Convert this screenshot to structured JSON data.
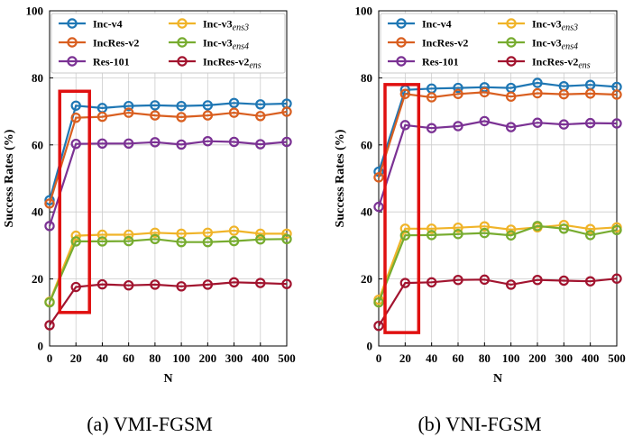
{
  "colors": {
    "Inc-v4": "#1f77b4",
    "IncRes-v2": "#d95f20",
    "Res-101": "#7b3294",
    "Inc-v3ens3": "#f0b429",
    "Inc-v3ens4": "#77ac30",
    "IncRes-v2ens": "#a2142f",
    "highlight": "#e01010",
    "grid": "#cccccc"
  },
  "chart_data": [
    {
      "type": "line",
      "caption": "(a) VMI-FGSM",
      "xlabel": "N",
      "ylabel": "Success Rates (%)",
      "categories": [
        "0",
        "20",
        "40",
        "60",
        "80",
        "100",
        "200",
        "300",
        "400",
        "500"
      ],
      "ylim": [
        0,
        100
      ],
      "yticks": [
        "0",
        "20",
        "40",
        "60",
        "80",
        "100"
      ],
      "grid": true,
      "legend_position": "top",
      "highlight_range": {
        "x_from": "20",
        "y_from": 10,
        "y_to": 76
      },
      "series": [
        {
          "name": "Inc-v4",
          "label": "Inc-v4",
          "sub": "",
          "values": [
            43.5,
            71.7,
            71.0,
            71.6,
            71.8,
            71.6,
            71.8,
            72.5,
            72.1,
            72.3
          ]
        },
        {
          "name": "IncRes-v2",
          "label": "IncRes-v2",
          "sub": "",
          "values": [
            42.5,
            68.1,
            68.4,
            69.6,
            68.8,
            68.3,
            68.8,
            69.6,
            68.6,
            69.9
          ]
        },
        {
          "name": "Res-101",
          "label": "Res-101",
          "sub": "",
          "values": [
            35.8,
            60.3,
            60.4,
            60.4,
            60.8,
            60.1,
            61.1,
            60.9,
            60.2,
            60.9
          ]
        },
        {
          "name": "Inc-v3ens3",
          "label": "Inc-v3",
          "sub": "ens3",
          "values": [
            13.2,
            32.9,
            33.2,
            33.2,
            33.8,
            33.5,
            33.8,
            34.4,
            33.5,
            33.5
          ]
        },
        {
          "name": "Inc-v3ens4",
          "label": "Inc-v3",
          "sub": "ens4",
          "values": [
            13.0,
            31.2,
            31.2,
            31.3,
            31.9,
            31.0,
            31.0,
            31.3,
            31.8,
            31.9
          ]
        },
        {
          "name": "IncRes-v2ens",
          "label": "IncRes-v2",
          "sub": "ens",
          "values": [
            6.2,
            17.6,
            18.4,
            18.1,
            18.3,
            17.8,
            18.3,
            19.0,
            18.8,
            18.5
          ]
        }
      ]
    },
    {
      "type": "line",
      "caption": "(b) VNI-FGSM",
      "xlabel": "N",
      "ylabel": "Success Rates (%)",
      "categories": [
        "0",
        "20",
        "40",
        "60",
        "80",
        "100",
        "200",
        "300",
        "400",
        "500"
      ],
      "ylim": [
        0,
        100
      ],
      "yticks": [
        "0",
        "20",
        "40",
        "60",
        "80",
        "100"
      ],
      "grid": true,
      "legend_position": "top",
      "highlight_range": {
        "x_from": "0",
        "y_from": 4,
        "y_to": 78
      },
      "series": [
        {
          "name": "Inc-v4",
          "label": "Inc-v4",
          "sub": "",
          "values": [
            52.0,
            76.4,
            76.8,
            77.0,
            77.2,
            77.0,
            78.5,
            77.5,
            77.9,
            77.3
          ]
        },
        {
          "name": "IncRes-v2",
          "label": "IncRes-v2",
          "sub": "",
          "values": [
            50.3,
            75.2,
            74.2,
            75.2,
            75.7,
            74.4,
            75.4,
            75.1,
            75.3,
            75.0
          ]
        },
        {
          "name": "Res-101",
          "label": "Res-101",
          "sub": "",
          "values": [
            41.5,
            65.9,
            65.0,
            65.6,
            67.1,
            65.3,
            66.6,
            66.1,
            66.5,
            66.4
          ]
        },
        {
          "name": "Inc-v3ens3",
          "label": "Inc-v3",
          "sub": "ens3",
          "values": [
            13.8,
            35.0,
            35.0,
            35.3,
            35.7,
            34.7,
            35.4,
            36.1,
            34.9,
            35.4
          ]
        },
        {
          "name": "Inc-v3ens4",
          "label": "Inc-v3",
          "sub": "ens4",
          "values": [
            13.0,
            33.0,
            33.1,
            33.4,
            33.7,
            33.0,
            35.8,
            35.0,
            33.1,
            34.6
          ]
        },
        {
          "name": "IncRes-v2ens",
          "label": "IncRes-v2",
          "sub": "ens",
          "values": [
            6.0,
            18.8,
            19.0,
            19.7,
            19.8,
            18.3,
            19.7,
            19.5,
            19.3,
            20.1
          ]
        }
      ]
    }
  ]
}
